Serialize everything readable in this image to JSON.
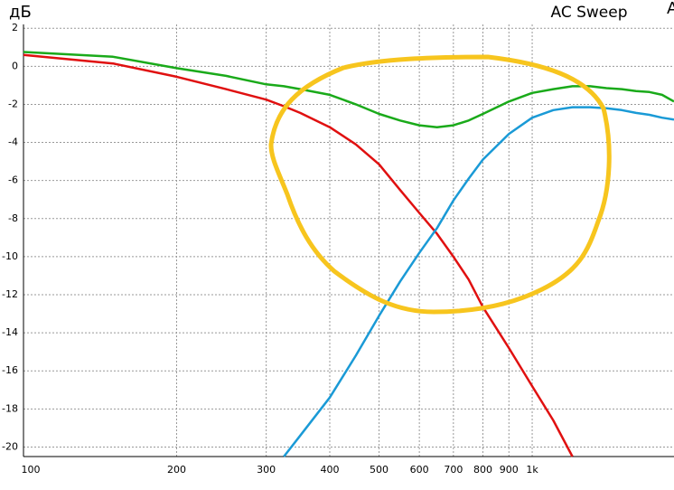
{
  "chart_data": {
    "type": "line",
    "title": "AC Sweep",
    "y_label": "дБ",
    "annotation": "A",
    "xscale": "log",
    "grid": true,
    "x": [
      100,
      150,
      200,
      250,
      300,
      325,
      350,
      400,
      450,
      500,
      550,
      600,
      650,
      700,
      750,
      800,
      900,
      1000,
      1100,
      1200,
      1300,
      1400,
      1500,
      1600,
      1700,
      1800,
      1900
    ],
    "series": [
      {
        "color": "#1aaa1a",
        "values": [
          0.75,
          0.5,
          -0.1,
          -0.5,
          -0.95,
          -1.05,
          -1.2,
          -1.5,
          -2,
          -2.5,
          -2.85,
          -3.1,
          -3.2,
          -3.1,
          -2.85,
          -2.5,
          -1.85,
          -1.4,
          -1.2,
          -1.05,
          -1.05,
          -1.15,
          -1.2,
          -1.3,
          -1.35,
          -1.5,
          -1.85
        ]
      },
      {
        "color": "#e01010",
        "values": [
          0.6,
          0.15,
          -0.55,
          -1.2,
          -1.75,
          -2.1,
          -2.45,
          -3.2,
          -4.1,
          -5.15,
          -6.5,
          -7.7,
          -8.8,
          -10,
          -11.2,
          -12.65,
          -14.8,
          -16.8,
          -18.6,
          -20.5,
          null,
          null,
          null,
          null,
          null,
          null,
          null
        ]
      },
      {
        "color": "#1a9ad6",
        "values": [
          null,
          null,
          null,
          null,
          null,
          -20.5,
          -19.4,
          -17.4,
          -15.2,
          -13.1,
          -11.3,
          -9.8,
          -8.5,
          -7.05,
          -5.9,
          -4.9,
          -3.55,
          -2.7,
          -2.3,
          -2.15,
          -2.15,
          -2.2,
          -2.3,
          -2.45,
          -2.55,
          -2.7,
          -2.8
        ]
      }
    ],
    "xlim": [
      100,
      1900
    ],
    "ylim": [
      -20.5,
      2.2
    ],
    "xticks": [
      100,
      200,
      300,
      400,
      500,
      600,
      700,
      800,
      900,
      {
        "value": 1000,
        "label": "1k"
      }
    ],
    "yticks": [
      2,
      0,
      -2,
      -4,
      -6,
      -8,
      -10,
      -12,
      -14,
      -16,
      -18,
      -20
    ]
  }
}
